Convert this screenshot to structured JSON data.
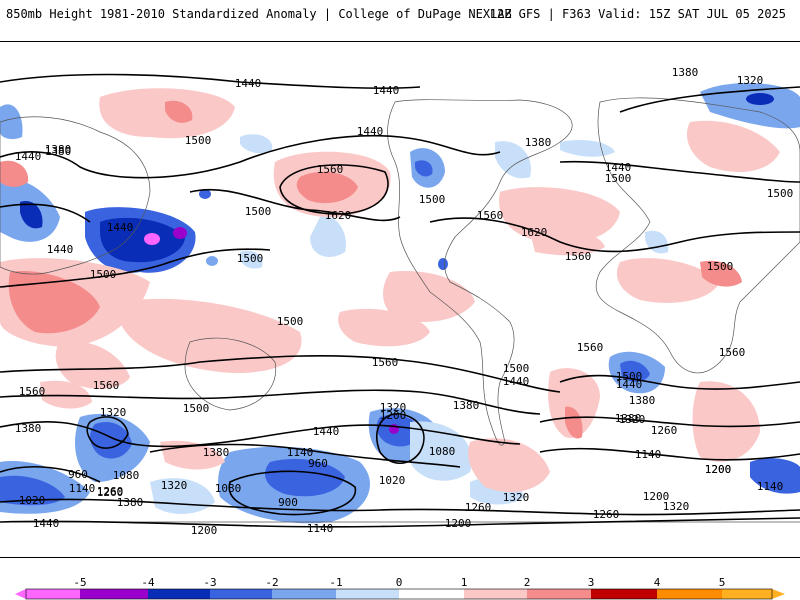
{
  "header": {
    "title": "850mb Height 1981-2010 Standardized Anomaly | College of DuPage NEXLAB",
    "run_info": "12Z GFS | F363 Valid: 15Z SAT JUL 05 2025"
  },
  "colorbar": {
    "ticks": [
      "-5",
      "-4",
      "-3",
      "-2",
      "-1",
      "0",
      "1",
      "2",
      "3",
      "4",
      "5"
    ],
    "colors": [
      "#ff66ff",
      "#9900cc",
      "#0a2db8",
      "#3a63e0",
      "#7aa6ee",
      "#c8dffa",
      "#ffffff",
      "#fbc8c8",
      "#f48c8c",
      "#ea5050",
      "#c00000",
      "#ff8c00",
      "#ffb020"
    ]
  },
  "contour_labels": [
    {
      "text": "1440"
    },
    {
      "text": "1440"
    },
    {
      "text": "1440"
    },
    {
      "text": "1380"
    },
    {
      "text": "1320"
    },
    {
      "text": "1440"
    },
    {
      "text": "1380"
    },
    {
      "text": "1500"
    },
    {
      "text": "1560"
    },
    {
      "text": "1620"
    },
    {
      "text": "1500"
    },
    {
      "text": "1500"
    },
    {
      "text": "1560"
    },
    {
      "text": "1620"
    },
    {
      "text": "1380"
    },
    {
      "text": "1440"
    },
    {
      "text": "1500"
    },
    {
      "text": "1440"
    },
    {
      "text": "1440"
    },
    {
      "text": "1500"
    },
    {
      "text": "1560"
    },
    {
      "text": "1500"
    },
    {
      "text": "1500"
    },
    {
      "text": "1500"
    },
    {
      "text": "1440"
    },
    {
      "text": "1560"
    },
    {
      "text": "1560"
    },
    {
      "text": "1560"
    },
    {
      "text": "1560"
    },
    {
      "text": "1500"
    },
    {
      "text": "1440"
    },
    {
      "text": "1380"
    },
    {
      "text": "1500"
    },
    {
      "text": "1440"
    },
    {
      "text": "1380"
    },
    {
      "text": "1320"
    },
    {
      "text": "1200"
    },
    {
      "text": "1380"
    },
    {
      "text": "1320"
    },
    {
      "text": "1260"
    },
    {
      "text": "1080"
    },
    {
      "text": "1380"
    },
    {
      "text": "1140"
    },
    {
      "text": "960"
    },
    {
      "text": "1020"
    },
    {
      "text": "960"
    },
    {
      "text": "1080"
    },
    {
      "text": "1140"
    },
    {
      "text": "1020"
    },
    {
      "text": "1260"
    },
    {
      "text": "1380"
    },
    {
      "text": "1320"
    },
    {
      "text": "1080"
    },
    {
      "text": "900"
    },
    {
      "text": "1140"
    },
    {
      "text": "1200"
    },
    {
      "text": "1440"
    },
    {
      "text": "1200"
    },
    {
      "text": "1260"
    },
    {
      "text": "1320"
    },
    {
      "text": "1260"
    },
    {
      "text": "1200"
    },
    {
      "text": "1320"
    },
    {
      "text": "1140"
    },
    {
      "text": "1200"
    },
    {
      "text": "1140"
    },
    {
      "text": "1560"
    },
    {
      "text": "1500"
    },
    {
      "text": "1380"
    },
    {
      "text": "1500"
    },
    {
      "text": "1380"
    },
    {
      "text": "1320"
    },
    {
      "text": "1260"
    },
    {
      "text": "1200"
    }
  ]
}
